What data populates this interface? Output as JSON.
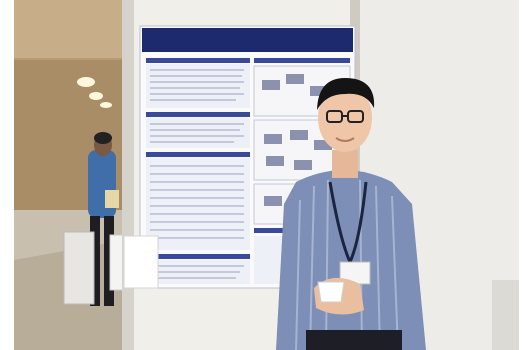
{
  "photo": {
    "description_type": "poster-session-photograph",
    "poster": {
      "title": ""
    },
    "colors": {
      "wall_left": "#b59a73",
      "poster_board": "#f1efea",
      "poster_header": "#1d2a6e",
      "poster_section": "#3a4a9b",
      "shirt": "#7d8fb6",
      "floor": "#c8bfae"
    }
  }
}
